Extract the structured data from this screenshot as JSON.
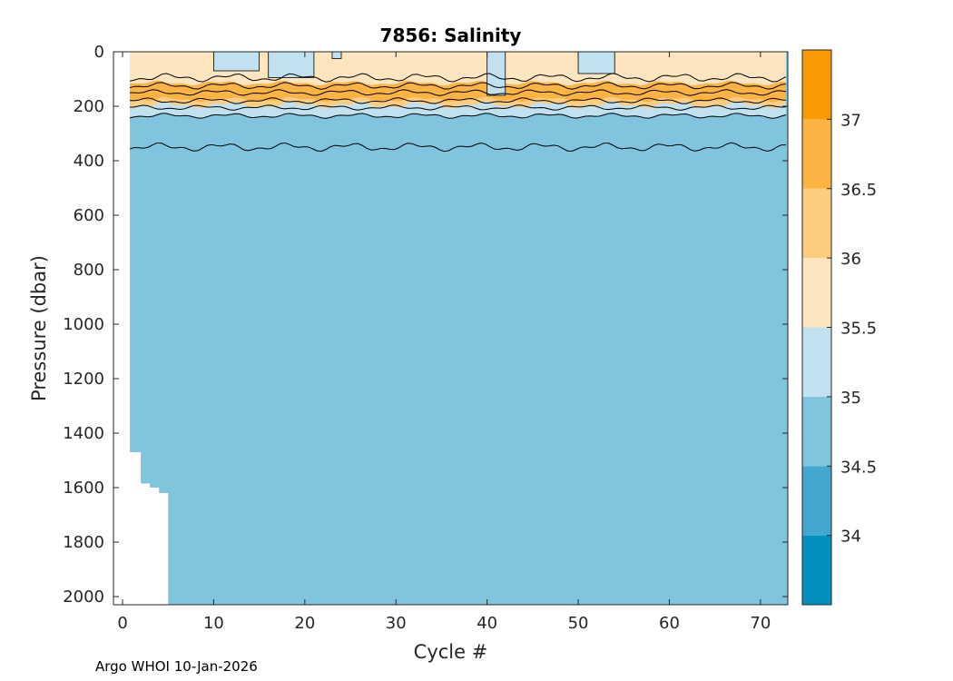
{
  "chart_data": {
    "type": "heatmap",
    "title": "7856:  Salinity",
    "xlabel": "Cycle #",
    "ylabel": "Pressure (dbar)",
    "xlim": [
      -1,
      73
    ],
    "ylim": [
      0,
      2030
    ],
    "y_reversed": true,
    "x_ticks": [
      0,
      10,
      20,
      30,
      40,
      50,
      60,
      70
    ],
    "y_ticks": [
      0,
      200,
      400,
      600,
      800,
      1000,
      1200,
      1400,
      1600,
      1800,
      2000
    ],
    "colorbar": {
      "range": [
        33.5,
        37.5
      ],
      "ticks": [
        34,
        34.5,
        35,
        35.5,
        36,
        36.5,
        37
      ],
      "levels": [
        {
          "from": 33.5,
          "to": 34.0,
          "color": "#0390bd"
        },
        {
          "from": 34.0,
          "to": 34.5,
          "color": "#42a8cf"
        },
        {
          "from": 34.5,
          "to": 35.0,
          "color": "#80c4de"
        },
        {
          "from": 35.0,
          "to": 35.5,
          "color": "#c0e1ed"
        },
        {
          "from": 35.5,
          "to": 36.0,
          "color": "#fde6bf"
        },
        {
          "from": 36.0,
          "to": 36.5,
          "color": "#fccc80"
        },
        {
          "from": 36.5,
          "to": 37.0,
          "color": "#fbb342"
        },
        {
          "from": 37.0,
          "to": 37.5,
          "color": "#f99a03"
        }
      ]
    },
    "profile_max_depth": [
      {
        "cycle": 1,
        "max_pressure": 1470
      },
      {
        "cycle": 2,
        "max_pressure": 1585
      },
      {
        "cycle": 3,
        "max_pressure": 1600
      },
      {
        "cycle": 4,
        "max_pressure": 1620
      },
      {
        "cycle": 5,
        "max_pressure": 2030
      }
    ],
    "layers": [
      {
        "name": "surface",
        "salinity_range": "35.5-36",
        "top_pressure": 0,
        "bottom_pressure": 120
      },
      {
        "name": "subsurface_max",
        "salinity_range": "36-37",
        "top_pressure": 120,
        "bottom_pressure": 195
      },
      {
        "name": "transition",
        "salinity_range": "35-35.5",
        "top_pressure": 195,
        "bottom_pressure": 230
      },
      {
        "name": "deep",
        "salinity_range": "34.5-35",
        "top_pressure": 230,
        "bottom_pressure": 2030
      }
    ],
    "isohaline_near_350dbar": {
      "mean_pressure": 350
    }
  },
  "footer": "Argo WHOI 10-Jan-2026"
}
